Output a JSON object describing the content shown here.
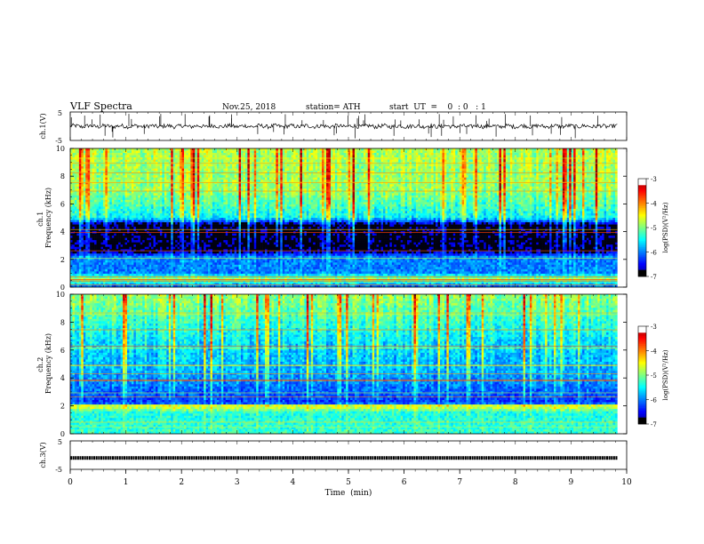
{
  "header": {
    "title": "VLF  Spectra",
    "date": "Nov.25, 2018",
    "station": "station= ATH",
    "start_ut": "start  UT  =    0  : 0   : 1"
  },
  "chart_data": [
    {
      "id": "ch1-waveform",
      "type": "line",
      "title": "",
      "xlabel": "",
      "ylabel": "ch.1(V)",
      "xlim": [
        0,
        10
      ],
      "ylim": [
        -5,
        5
      ],
      "yticks": [
        -5,
        5
      ],
      "yticklabels": [
        "-5",
        "5"
      ],
      "data_end_min": 9.83,
      "baseline_v": 0,
      "noise_amplitude_v": 1.2,
      "spike_amplitude_v": 4.5,
      "color": "#000000"
    },
    {
      "id": "ch1-spectrogram",
      "type": "heatmap",
      "title": "",
      "xlabel": "",
      "ylabel": "ch.1\nFrequency  (kHz)",
      "xlim": [
        0,
        10
      ],
      "ylim": [
        0,
        10
      ],
      "yticks": [
        0,
        2,
        4,
        6,
        8,
        10
      ],
      "yticklabels": [
        "0",
        "2",
        "4",
        "6",
        "8",
        "10"
      ],
      "colorbar": {
        "label": "log(PSD)(V²/Hz)",
        "range": [
          -7,
          -3
        ],
        "ticks": [
          -7,
          -6,
          -5,
          -4,
          -3
        ],
        "ticklabels": [
          "-7",
          "-6",
          "-5",
          "-4",
          "-3"
        ]
      },
      "data_end_min": 9.83,
      "profile_by_khz": [
        [
          0,
          -6.2
        ],
        [
          0.6,
          -4.8
        ],
        [
          1.0,
          -6.0
        ],
        [
          2.2,
          -6.0
        ],
        [
          2.6,
          -6.8
        ],
        [
          4.5,
          -6.8
        ],
        [
          5.0,
          -5.5
        ],
        [
          7.0,
          -4.9
        ],
        [
          10.0,
          -4.8
        ]
      ]
    },
    {
      "id": "ch2-spectrogram",
      "type": "heatmap",
      "title": "",
      "xlabel": "",
      "ylabel": "ch.2\nFrequency  (kHz)",
      "xlim": [
        0,
        10
      ],
      "ylim": [
        0,
        10
      ],
      "yticks": [
        0,
        2,
        4,
        6,
        8,
        10
      ],
      "yticklabels": [
        "0",
        "2",
        "4",
        "6",
        "8",
        "10"
      ],
      "colorbar": {
        "label": "log(PSD)(V²/Hz)",
        "range": [
          -7,
          -3
        ],
        "ticks": [
          -7,
          -6,
          -5,
          -4,
          -3
        ],
        "ticklabels": [
          "-7",
          "-6",
          "-5",
          "-4",
          "-3"
        ]
      },
      "data_end_min": 9.83,
      "profile_by_khz": [
        [
          0,
          -5.3
        ],
        [
          1.5,
          -5.4
        ],
        [
          2.0,
          -4.5
        ],
        [
          2.2,
          -6.3
        ],
        [
          3.5,
          -6.0
        ],
        [
          4.5,
          -5.8
        ],
        [
          6.5,
          -5.6
        ],
        [
          10.0,
          -4.9
        ]
      ]
    },
    {
      "id": "ch3-pulses",
      "type": "line",
      "title": "",
      "xlabel": "Time  (min)",
      "ylabel": "ch.3(V)",
      "xlim": [
        0,
        10
      ],
      "ylim": [
        -5,
        5
      ],
      "yticks": [
        -5,
        5
      ],
      "yticklabels": [
        "-5",
        "5"
      ],
      "xticks": [
        0,
        1,
        2,
        3,
        4,
        5,
        6,
        7,
        8,
        9,
        10
      ],
      "xticklabels": [
        "0",
        "1",
        "2",
        "3",
        "4",
        "5",
        "6",
        "7",
        "8",
        "9",
        "10"
      ],
      "data_end_min": 9.83,
      "pulse_level_v": -1,
      "pulse_spacing_min": 0.0417,
      "color": "#000000"
    }
  ]
}
